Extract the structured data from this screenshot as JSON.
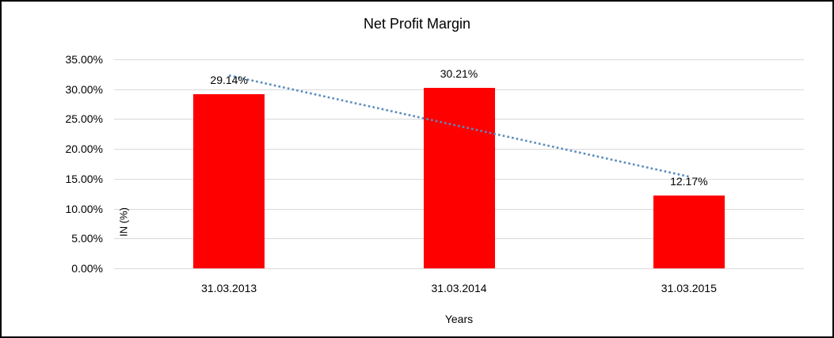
{
  "chart_data": {
    "type": "bar",
    "title": "Net Profit Margin",
    "xlabel": "Years",
    "ylabel": "IN (%)",
    "categories": [
      "31.03.2013",
      "31.03.2014",
      "31.03.2015"
    ],
    "series": [
      {
        "name": "Net Profit Margin",
        "values": [
          29.14,
          30.21,
          12.17
        ],
        "data_labels": [
          "29.14%",
          "30.21%",
          "12.17%"
        ],
        "color": "#ff0000"
      }
    ],
    "ylim": [
      0,
      35
    ],
    "ytick_step": 5,
    "ytick_labels": [
      "35.00%",
      "30.00%",
      "25.00%",
      "20.00%",
      "15.00%",
      "10.00%",
      "5.00%",
      "0.00%"
    ],
    "grid": true,
    "gridline_color": "#d9d9d9",
    "legend_position": "none",
    "trendline": {
      "type": "linear",
      "style": "dotted",
      "color": "#5a8cbe",
      "start_value_pct": 32.31,
      "end_value_pct": 15.36
    }
  }
}
